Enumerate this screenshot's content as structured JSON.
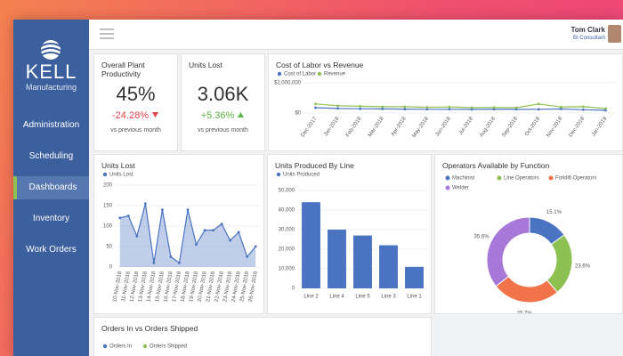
{
  "sidebar": {
    "logo": "KELL",
    "subtitle": "Manufacturing",
    "nav": [
      "Administration",
      "Scheduling",
      "Dashboards",
      "Inventory",
      "Work Orders"
    ],
    "active": 2
  },
  "user": {
    "name": "Tom Clark",
    "role": "BI Consultant"
  },
  "kpis": [
    {
      "title": "Overall Plant Productivity",
      "value": "45%",
      "change": "-24.28%",
      "trend": "down",
      "note": "vs previous month"
    },
    {
      "title": "Units Lost",
      "value": "3.06K",
      "change": "+5.36%",
      "trend": "up",
      "note": "vs previous month"
    }
  ],
  "chart_data": [
    {
      "type": "line",
      "title": "Cost of Labor vs Revenue",
      "categories": [
        "Dec-2017",
        "Jan-2018",
        "Feb-2018",
        "Mar-2018",
        "Apr-2018",
        "May-2018",
        "Jun-2018",
        "Jul-2018",
        "Aug-2018",
        "Sep-2018",
        "Oct-2018",
        "Nov-2018",
        "Dec-2018",
        "Jan-2019"
      ],
      "series": [
        {
          "name": "Cost of Labor",
          "color": "#4a74c2",
          "values": [
            350000,
            300000,
            280000,
            270000,
            260000,
            250000,
            250000,
            240000,
            260000,
            240000,
            250000,
            270000,
            220000,
            180000
          ]
        },
        {
          "name": "Revenue",
          "color": "#8cc152",
          "values": [
            600000,
            480000,
            450000,
            420000,
            420000,
            380000,
            400000,
            360000,
            370000,
            350000,
            600000,
            400000,
            420000,
            300000
          ]
        }
      ],
      "ylim": [
        0,
        2000000
      ],
      "yticks": [
        {
          "value": 0,
          "label": "$0"
        },
        {
          "value": 2000000,
          "label": "$2,000,000"
        }
      ],
      "grid": true
    },
    {
      "type": "area",
      "title": "Units Lost",
      "categories": [
        "10-Nov-2018",
        "11-Nov-2018",
        "12-Nov-2018",
        "13-Nov-2018",
        "14-Nov-2018",
        "15-Nov-2018",
        "16-Nov-2018",
        "17-Nov-2018",
        "18-Nov-2018",
        "19-Nov-2018",
        "20-Nov-2018",
        "21-Nov-2018",
        "22-Nov-2018",
        "23-Nov-2018",
        "24-Nov-2018",
        "25-Nov-2018",
        "26-Nov-2018"
      ],
      "series": [
        {
          "name": "Units Lost",
          "color": "#4a74c2",
          "values": [
            120,
            125,
            75,
            155,
            10,
            140,
            25,
            10,
            140,
            55,
            90,
            90,
            105,
            65,
            85,
            25,
            50
          ]
        }
      ],
      "ylim": [
        0,
        200
      ],
      "yticks": [
        0,
        50,
        100,
        150,
        200
      ],
      "grid": true
    },
    {
      "type": "bar",
      "title": "Units Produced By Line",
      "categories": [
        "Line 2",
        "Line 4",
        "Line 5",
        "Line 3",
        "Line 1"
      ],
      "series": [
        {
          "name": "Units Produced",
          "color": "#4a74c2",
          "values": [
            44000,
            30000,
            27000,
            22000,
            11000
          ]
        }
      ],
      "ylim": [
        0,
        50000
      ],
      "yticks": [
        {
          "value": 0,
          "label": "0"
        },
        {
          "value": 10000,
          "label": "10,000"
        },
        {
          "value": 20000,
          "label": "20,000"
        },
        {
          "value": 30000,
          "label": "30,000"
        },
        {
          "value": 40000,
          "label": "40,000"
        },
        {
          "value": 50000,
          "label": "50,000"
        }
      ],
      "grid": true
    },
    {
      "type": "pie",
      "title": "Operators Available by Function",
      "categories": [
        "Machinist",
        "Line Operators",
        "Forklift Operators",
        "Welder"
      ],
      "values": [
        15.1,
        23.6,
        25.7,
        35.6
      ],
      "value_labels": [
        "15.1%",
        "23.6%",
        "25.7%",
        "35.6%"
      ],
      "colors": [
        "#4a74c2",
        "#8cc152",
        "#f0734a",
        "#a878d8"
      ]
    },
    {
      "type": "line",
      "title": "Orders In vs Orders Shipped",
      "series": [
        {
          "name": "Orders In",
          "color": "#4a74c2"
        },
        {
          "name": "Orders Shipped",
          "color": "#8cc152"
        }
      ]
    }
  ]
}
